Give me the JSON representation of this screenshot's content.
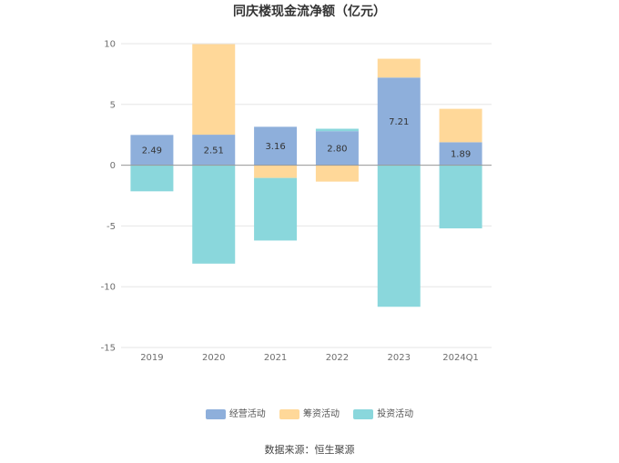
{
  "chart_data": {
    "type": "bar",
    "stacked": true,
    "title": "同庆楼现金流净额（亿元）",
    "categories": [
      "2019",
      "2020",
      "2021",
      "2022",
      "2023",
      "2024Q1"
    ],
    "ylim": [
      -15,
      10
    ],
    "yticks": [
      10,
      5,
      0,
      -5,
      -10,
      -15
    ],
    "grid": true,
    "legend_position": "bottom",
    "series": [
      {
        "name": "经营活动",
        "color": "#8eafdb",
        "values": [
          2.49,
          2.51,
          3.16,
          2.8,
          7.21,
          1.89
        ],
        "labels": [
          "2.49",
          "2.51",
          "3.16",
          "2.80",
          "7.21",
          "1.89"
        ]
      },
      {
        "name": "筹资活动",
        "color": "#ffd899",
        "values": [
          0.0,
          7.45,
          -1.05,
          -1.35,
          1.55,
          2.75
        ]
      },
      {
        "name": "投资活动",
        "color": "#8ad7dc",
        "values": [
          -2.15,
          -8.1,
          -5.15,
          0.2,
          -11.65,
          -5.2
        ]
      }
    ]
  },
  "source": "数据来源：恒生聚源"
}
